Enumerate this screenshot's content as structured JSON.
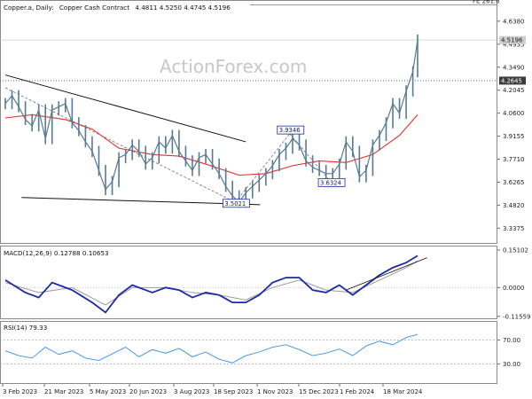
{
  "header": {
    "symbol": "Copper.a, Daily:",
    "name": "Copper Cash Contract",
    "ohlc": "4.4811 4.5250 4.4745 4.5196"
  },
  "watermark": "ActionForex.com",
  "colors": {
    "price": "#587a92",
    "ma": "#e0302a",
    "macd": "#1c2aa8",
    "signal": "#9a9a9a",
    "rsi": "#3a8fe8",
    "trendline": "#111111",
    "zigzag": "#707070",
    "box_border": "#1c2aa8"
  },
  "chart_data": [
    {
      "type": "line",
      "panel": "price",
      "price_scale": [
        4.638,
        4.4935,
        4.349,
        4.2045,
        4.06,
        3.9155,
        3.771,
        3.6265,
        3.482,
        3.3375
      ],
      "ylim": [
        3.25,
        4.76
      ],
      "x_labels": [
        "3 Feb 2023",
        "21 Mar 2023",
        "5 May 2023",
        "20 Jun 2023",
        "3 Aug 2023",
        "18 Sep 2023",
        "1 Nov 2023",
        "15 Dec 2023",
        "1 Feb 2024",
        "18 Mar 2024"
      ],
      "x_domain": [
        "2023-02-03",
        "2024-04-10"
      ],
      "fibo_label": "FE 261.8",
      "fibo_level": 4.758,
      "level_line": 4.2645,
      "price_tags": [
        {
          "value": 4.5196,
          "text": "4.5196",
          "style": "gray"
        },
        {
          "value": 4.2645,
          "text": "4.2645",
          "style": "dark"
        }
      ],
      "annotations": [
        {
          "date": "2023-11-28",
          "value": 3.9346,
          "text": "3.9346"
        },
        {
          "date": "2023-10-02",
          "value": 3.5021,
          "text": "3.5021"
        },
        {
          "date": "2024-01-10",
          "value": 3.6324,
          "text": "3.6324"
        }
      ],
      "series": [
        {
          "role": "price",
          "x": [
            "2023-02-03",
            "2023-02-10",
            "2023-02-17",
            "2023-02-24",
            "2023-03-03",
            "2023-03-10",
            "2023-03-17",
            "2023-03-24",
            "2023-03-31",
            "2023-04-07",
            "2023-04-14",
            "2023-04-21",
            "2023-04-28",
            "2023-05-05",
            "2023-05-12",
            "2023-05-19",
            "2023-05-26",
            "2023-06-02",
            "2023-06-09",
            "2023-06-16",
            "2023-06-23",
            "2023-06-30",
            "2023-07-07",
            "2023-07-14",
            "2023-07-21",
            "2023-07-28",
            "2023-08-04",
            "2023-08-11",
            "2023-08-18",
            "2023-08-25",
            "2023-09-01",
            "2023-09-08",
            "2023-09-15",
            "2023-09-22",
            "2023-09-29",
            "2023-10-06",
            "2023-10-13",
            "2023-10-20",
            "2023-10-27",
            "2023-11-03",
            "2023-11-10",
            "2023-11-17",
            "2023-11-24",
            "2023-12-01",
            "2023-12-08",
            "2023-12-15",
            "2023-12-22",
            "2023-12-29",
            "2024-01-05",
            "2024-01-12",
            "2024-01-19",
            "2024-01-26",
            "2024-02-02",
            "2024-02-09",
            "2024-02-16",
            "2024-02-23",
            "2024-03-01",
            "2024-03-08",
            "2024-03-15",
            "2024-03-22",
            "2024-03-29",
            "2024-04-05",
            "2024-04-10"
          ],
          "values": [
            4.12,
            4.17,
            4.1,
            4.02,
            3.98,
            4.08,
            3.9,
            4.08,
            4.1,
            4.12,
            4.0,
            3.95,
            3.88,
            3.82,
            3.7,
            3.58,
            3.63,
            3.78,
            3.8,
            3.86,
            3.82,
            3.74,
            3.78,
            3.88,
            3.84,
            3.92,
            3.82,
            3.76,
            3.7,
            3.78,
            3.8,
            3.74,
            3.68,
            3.6,
            3.54,
            3.5,
            3.56,
            3.6,
            3.64,
            3.68,
            3.73,
            3.8,
            3.84,
            3.9,
            3.86,
            3.76,
            3.72,
            3.7,
            3.68,
            3.68,
            3.74,
            3.88,
            3.82,
            3.66,
            3.7,
            3.86,
            3.92,
            4.0,
            4.12,
            4.06,
            4.2,
            4.32,
            4.52
          ]
        },
        {
          "role": "moving-average",
          "x": [
            "2023-02-03",
            "2023-03-03",
            "2023-04-07",
            "2023-05-05",
            "2023-06-02",
            "2023-07-07",
            "2023-08-04",
            "2023-09-01",
            "2023-10-06",
            "2023-11-03",
            "2023-12-01",
            "2023-12-29",
            "2024-01-26",
            "2024-02-23",
            "2024-03-22",
            "2024-04-10"
          ],
          "values": [
            4.03,
            4.05,
            4.02,
            3.96,
            3.84,
            3.8,
            3.79,
            3.74,
            3.67,
            3.68,
            3.73,
            3.76,
            3.75,
            3.8,
            3.92,
            4.05
          ]
        }
      ],
      "trendlines": [
        {
          "from_date": "2023-02-03",
          "from_value": 4.3,
          "to_date": "2023-10-13",
          "to_value": 3.88
        },
        {
          "from_date": "2023-02-20",
          "from_value": 3.53,
          "to_date": "2023-10-28",
          "to_value": 3.485
        },
        {
          "from_date": "2023-02-03",
          "from_value": 4.22,
          "to_date": "2023-10-02",
          "to_value": 3.5,
          "style": "dashed"
        },
        {
          "from_date": "2023-10-02",
          "from_value": 3.5,
          "to_date": "2023-11-28",
          "to_value": 3.93,
          "style": "dashed"
        },
        {
          "from_date": "2023-11-28",
          "from_value": 3.93,
          "to_date": "2024-01-10",
          "to_value": 3.63,
          "style": "dashed"
        }
      ]
    },
    {
      "type": "line",
      "panel": "macd",
      "label": "MACD(12,26,9) 0.12788 0.10653",
      "scale_ticks": [
        0.15102,
        0.0,
        -0.11559
      ],
      "ylim": [
        -0.12,
        0.165
      ],
      "series": [
        {
          "role": "macd",
          "x": [
            "2023-02-03",
            "2023-02-24",
            "2023-03-10",
            "2023-03-24",
            "2023-04-14",
            "2023-05-05",
            "2023-05-19",
            "2023-06-02",
            "2023-06-16",
            "2023-07-07",
            "2023-07-21",
            "2023-08-04",
            "2023-08-18",
            "2023-09-01",
            "2023-09-15",
            "2023-09-29",
            "2023-10-13",
            "2023-10-27",
            "2023-11-10",
            "2023-11-24",
            "2023-12-08",
            "2023-12-22",
            "2024-01-05",
            "2024-01-19",
            "2024-02-02",
            "2024-02-16",
            "2024-03-01",
            "2024-03-15",
            "2024-03-29",
            "2024-04-10"
          ],
          "values": [
            0.03,
            -0.02,
            -0.04,
            0.02,
            -0.01,
            -0.06,
            -0.1,
            -0.03,
            0.01,
            -0.02,
            0.0,
            -0.01,
            -0.04,
            -0.02,
            -0.03,
            -0.06,
            -0.06,
            -0.03,
            0.02,
            0.04,
            0.04,
            -0.01,
            -0.02,
            0.01,
            -0.03,
            0.01,
            0.05,
            0.08,
            0.1,
            0.128
          ]
        },
        {
          "role": "signal",
          "x": [
            "2023-02-03",
            "2023-03-10",
            "2023-04-14",
            "2023-05-19",
            "2023-06-16",
            "2023-07-21",
            "2023-08-18",
            "2023-09-15",
            "2023-10-13",
            "2023-11-10",
            "2023-12-08",
            "2024-01-05",
            "2024-02-02",
            "2024-03-01",
            "2024-03-29",
            "2024-04-10"
          ],
          "values": [
            0.02,
            -0.02,
            0.0,
            -0.07,
            0.0,
            0.0,
            -0.02,
            -0.03,
            -0.05,
            0.0,
            0.03,
            -0.01,
            -0.02,
            0.03,
            0.08,
            0.107
          ]
        }
      ],
      "trendlines": [
        {
          "from_date": "2024-01-26",
          "from_value": -0.01,
          "to_date": "2024-04-20",
          "to_value": 0.12
        }
      ]
    },
    {
      "type": "line",
      "panel": "rsi",
      "label": "RSI(14) 79.33",
      "scale_ticks": [
        70.0,
        30.0
      ],
      "ylim": [
        0,
        100
      ],
      "series": [
        {
          "role": "rsi",
          "x": [
            "2023-02-03",
            "2023-02-17",
            "2023-03-03",
            "2023-03-17",
            "2023-03-31",
            "2023-04-14",
            "2023-04-28",
            "2023-05-12",
            "2023-05-26",
            "2023-06-09",
            "2023-06-23",
            "2023-07-07",
            "2023-07-21",
            "2023-08-04",
            "2023-08-18",
            "2023-09-01",
            "2023-09-15",
            "2023-09-29",
            "2023-10-13",
            "2023-10-27",
            "2023-11-10",
            "2023-11-24",
            "2023-12-08",
            "2023-12-22",
            "2024-01-05",
            "2024-01-19",
            "2024-02-02",
            "2024-02-16",
            "2024-03-01",
            "2024-03-15",
            "2024-03-29",
            "2024-04-10"
          ],
          "values": [
            52,
            44,
            40,
            58,
            46,
            52,
            40,
            36,
            47,
            58,
            42,
            54,
            48,
            56,
            42,
            50,
            38,
            32,
            44,
            50,
            58,
            62,
            54,
            44,
            48,
            55,
            44,
            60,
            68,
            62,
            74,
            79.33
          ]
        }
      ]
    }
  ]
}
